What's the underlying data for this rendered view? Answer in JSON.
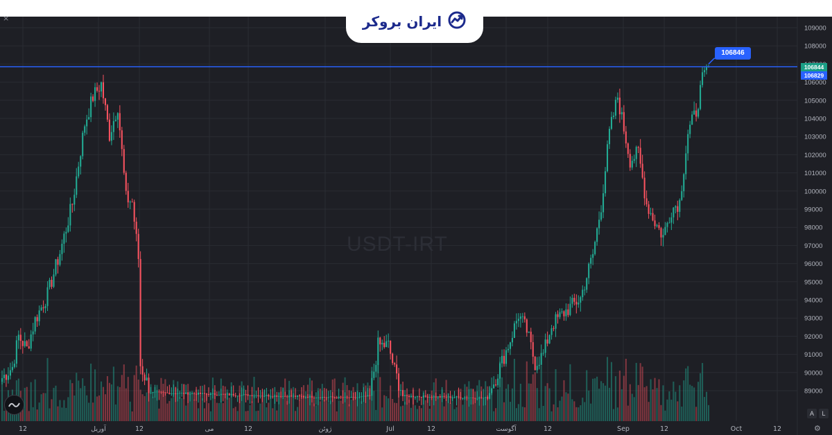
{
  "brand": {
    "name": "ایران بروکر",
    "logo_icon": "trend-arrow-icon",
    "color": "#1c2a8c"
  },
  "toolbar": {
    "close_glyph": "×",
    "auto_scale_label": "A",
    "log_scale_label": "L",
    "settings_glyph": "⚙"
  },
  "watermark": "USDT-IRT",
  "colors": {
    "background": "#1e1f25",
    "grid": "#2a2c33",
    "up": "#22ab94",
    "down": "#f7525f",
    "line": "#2962ff"
  },
  "price_line": {
    "value": 106846,
    "label": "106846",
    "axis_high_label": "106844",
    "axis_low_label": "106829"
  },
  "chart_data": {
    "type": "candlestick",
    "symbol": "USDT-IRT",
    "y_ticks": [
      "109000",
      "108000",
      "107000",
      "106000",
      "105000",
      "104000",
      "103000",
      "102000",
      "101000",
      "100000",
      "99000",
      "98000",
      "97000",
      "96000",
      "95000",
      "94000",
      "93000",
      "92000",
      "91000",
      "90000",
      "89000"
    ],
    "ylim": [
      88500,
      109500
    ],
    "x_ticks": [
      "12",
      "آوریل",
      "12",
      "می",
      "12",
      "ژوئن",
      "Jul",
      "12",
      "آگوست",
      "12",
      "Sep",
      "12",
      "Oct",
      "12"
    ],
    "grid": true,
    "horizontal_line": 106846,
    "price_waypoints": [
      [
        0,
        89700
      ],
      [
        5,
        90300
      ],
      [
        8,
        92000
      ],
      [
        12,
        91300
      ],
      [
        16,
        92900
      ],
      [
        22,
        94300
      ],
      [
        28,
        96600
      ],
      [
        34,
        99300
      ],
      [
        40,
        103700
      ],
      [
        44,
        105200
      ],
      [
        48,
        105900
      ],
      [
        52,
        103100
      ],
      [
        56,
        104700
      ],
      [
        60,
        99600
      ],
      [
        63,
        99400
      ],
      [
        66,
        96300
      ],
      [
        67,
        90400
      ],
      [
        72,
        88900
      ],
      [
        170,
        88600
      ],
      [
        178,
        88700
      ],
      [
        182,
        91500
      ],
      [
        187,
        91500
      ],
      [
        190,
        90100
      ],
      [
        194,
        88700
      ],
      [
        235,
        88600
      ],
      [
        240,
        90000
      ],
      [
        246,
        91800
      ],
      [
        250,
        93200
      ],
      [
        254,
        92300
      ],
      [
        258,
        90500
      ],
      [
        262,
        91000
      ],
      [
        266,
        92600
      ],
      [
        272,
        93300
      ],
      [
        280,
        94100
      ],
      [
        286,
        96500
      ],
      [
        290,
        99200
      ],
      [
        294,
        103200
      ],
      [
        298,
        105200
      ],
      [
        300,
        104000
      ],
      [
        304,
        101700
      ],
      [
        308,
        102100
      ],
      [
        312,
        99300
      ],
      [
        316,
        98300
      ],
      [
        320,
        97500
      ],
      [
        324,
        99000
      ],
      [
        328,
        99400
      ],
      [
        332,
        103200
      ],
      [
        336,
        104400
      ],
      [
        339,
        106100
      ],
      [
        342,
        106846
      ]
    ],
    "volume_level": "low"
  }
}
